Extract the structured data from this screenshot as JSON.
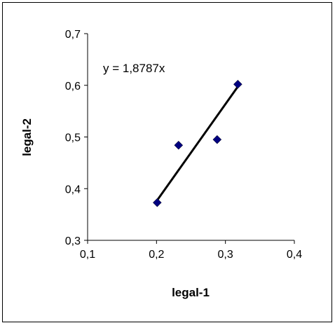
{
  "chart_data": {
    "type": "scatter",
    "xlabel": "legal-1",
    "ylabel": "legal-2",
    "xlim": [
      0.1,
      0.4
    ],
    "ylim": [
      0.3,
      0.7
    ],
    "x_ticks": [
      0.1,
      0.2,
      0.3,
      0.4
    ],
    "y_ticks": [
      0.3,
      0.4,
      0.5,
      0.6,
      0.7
    ],
    "x_tick_labels": [
      "0,1",
      "0,2",
      "0,3",
      "0,4"
    ],
    "y_tick_labels": [
      "0,3",
      "0,4",
      "0,5",
      "0,6",
      "0,7"
    ],
    "series": [
      {
        "points": [
          {
            "x": 0.201,
            "y": 0.373
          },
          {
            "x": 0.232,
            "y": 0.484
          },
          {
            "x": 0.288,
            "y": 0.495
          },
          {
            "x": 0.318,
            "y": 0.602
          }
        ],
        "marker": "diamond",
        "color": "#000080"
      }
    ],
    "trendline": {
      "equation": "y = 1,8787x",
      "slope": 1.8787,
      "intercept": 0,
      "x_range": [
        0.201,
        0.318
      ],
      "color": "#000000"
    },
    "grid": false,
    "legend": "none"
  }
}
